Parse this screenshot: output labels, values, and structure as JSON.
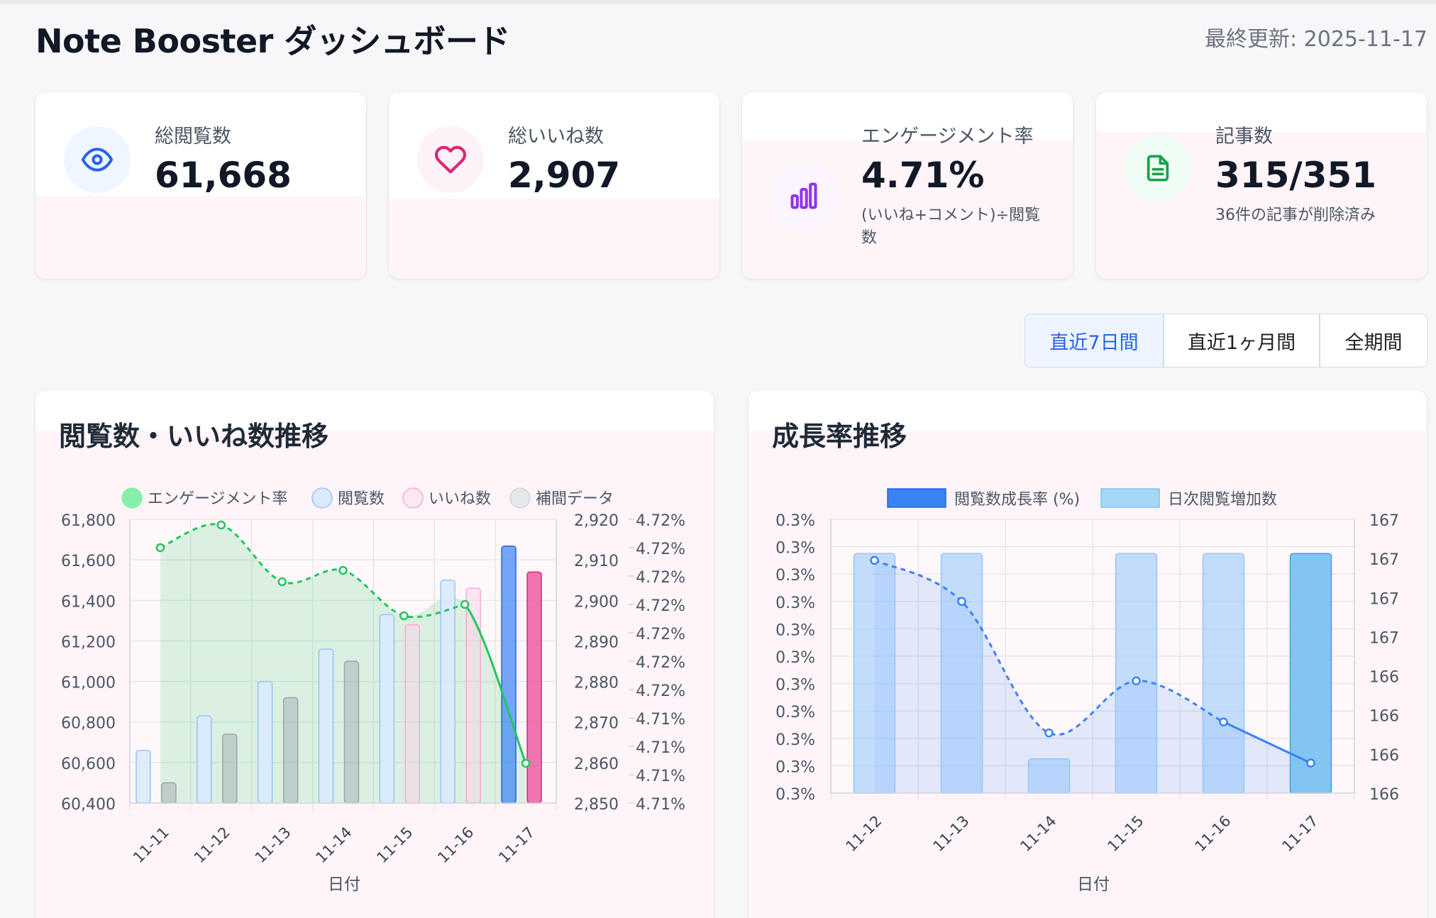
{
  "header": {
    "title": "Note Booster ダッシュボード",
    "last_updated": "最終更新: 2025-11-17"
  },
  "stats": [
    {
      "label": "総閲覧数",
      "value": "61,668",
      "sub": "",
      "icon": "eye-icon",
      "color": "#2563eb",
      "icon_bg": "#eff6ff"
    },
    {
      "label": "総いいね数",
      "value": "2,907",
      "sub": "",
      "icon": "heart-icon",
      "color": "#db2777",
      "icon_bg": "#fdf2f8"
    },
    {
      "label": "エンゲージメント率",
      "value": "4.71%",
      "sub": "(いいね+コメント)÷閲覧数",
      "icon": "bar-chart-icon",
      "color": "#9333ea",
      "icon_bg": "#faf5ff"
    },
    {
      "label": "記事数",
      "value": "315/351",
      "sub": "36件の記事が削除済み",
      "icon": "document-icon",
      "color": "#16a34a",
      "icon_bg": "#f0fdf4"
    }
  ],
  "period_tabs": {
    "selected": "直近7日間",
    "options": [
      "直近7日間",
      "直近1ヶ月間",
      "全期間"
    ]
  },
  "colors": {
    "views": "#3b82f6",
    "likes": "#ec4899",
    "engagement": "#22c55e",
    "interpolated": "#9ca3af",
    "growth": "#3b82f6",
    "daily": "#93c5fd"
  },
  "chart_data": [
    {
      "type": "bar",
      "title": "閲覧数・いいね数推移",
      "xlabel": "日付",
      "categories": [
        "11-11",
        "11-12",
        "11-13",
        "11-14",
        "11-15",
        "11-16",
        "11-17"
      ],
      "legend": [
        "エンゲージメント率",
        "閲覧数",
        "いいね数",
        "補間データ"
      ],
      "legend_position": "top",
      "y_left": {
        "ticks": [
          "61,800",
          "61,600",
          "61,400",
          "61,200",
          "61,000",
          "60,800",
          "60,600",
          "60,400"
        ],
        "min": 60400,
        "max": 61800
      },
      "y_right1": {
        "ticks": [
          "2,920",
          "2,910",
          "2,900",
          "2,890",
          "2,880",
          "2,870",
          "2,860",
          "2,850"
        ],
        "min": 2850,
        "max": 2920
      },
      "y_right2": {
        "ticks": [
          "4.72%",
          "4.72%",
          "4.72%",
          "4.72%",
          "4.72%",
          "4.72%",
          "4.72%",
          "4.71%",
          "4.71%",
          "4.71%",
          "4.71%"
        ]
      },
      "series": [
        {
          "name": "閲覧数",
          "axis": "left",
          "values": [
            60660,
            60830,
            61000,
            61160,
            61330,
            61500,
            61668
          ]
        },
        {
          "name": "いいね数",
          "axis": "right1",
          "values": [
            2855,
            2867,
            2876,
            2885,
            2894,
            2903,
            2907
          ]
        },
        {
          "name": "補間データ",
          "axis": "right1",
          "values": [
            null,
            null,
            null,
            null,
            null,
            null,
            null
          ]
        },
        {
          "name": "エンゲージメント率",
          "axis": "right2",
          "values": [
            0.9,
            0.98,
            0.78,
            0.82,
            0.66,
            0.7,
            0.14
          ]
        }
      ],
      "interpolated_points": [
        true,
        true,
        true,
        true,
        true,
        true,
        false
      ]
    },
    {
      "type": "bar",
      "title": "成長率推移",
      "xlabel": "日付",
      "categories": [
        "11-12",
        "11-13",
        "11-14",
        "11-15",
        "11-16",
        "11-17"
      ],
      "legend": [
        "閲覧数成長率 (%)",
        "日次閲覧増加数"
      ],
      "legend_position": "top",
      "y_left": {
        "ticks": [
          "0.3%",
          "0.3%",
          "0.3%",
          "0.3%",
          "0.3%",
          "0.3%",
          "0.3%",
          "0.3%",
          "0.3%",
          "0.3%",
          "0.3%"
        ]
      },
      "y_right": {
        "ticks": [
          "167",
          "167",
          "167",
          "167",
          "166",
          "166",
          "166",
          "166"
        ],
        "min": 165.8,
        "max": 167.4
      },
      "series": [
        {
          "name": "日次閲覧増加数",
          "axis": "right",
          "values": [
            167.2,
            167.2,
            166.0,
            167.2,
            167.2,
            167.2
          ]
        },
        {
          "name": "閲覧数成長率 (%)",
          "axis": "left",
          "values": [
            0.85,
            0.7,
            0.22,
            0.41,
            0.26,
            0.11
          ]
        }
      ],
      "interpolated_points": [
        true,
        true,
        true,
        true,
        true,
        false
      ]
    }
  ]
}
